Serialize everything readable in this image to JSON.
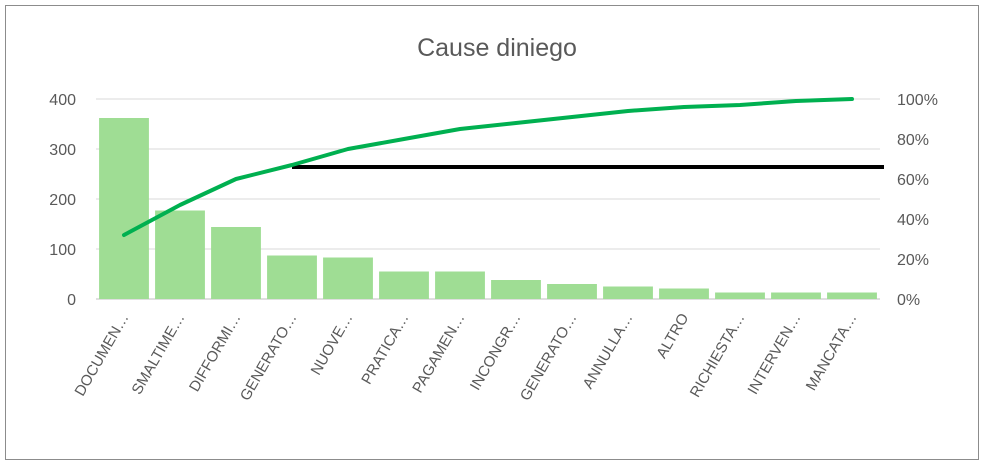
{
  "chart_data": {
    "type": "bar",
    "title": "Cause diniego",
    "categories": [
      "DOCUMEN…",
      "SMALTIME…",
      "DIFFORMI…",
      "GENERATO…",
      "NUOVE…",
      "PRATICA…",
      "PAGAMEN…",
      "INCONGR…",
      "GENERATO…",
      "ANNULLA…",
      "ALTRO",
      "RICHIESTA…",
      "INTERVEN…",
      "MANCATA…"
    ],
    "series": [
      {
        "values": [
          362,
          177,
          144,
          87,
          83,
          55,
          55,
          38,
          30,
          25,
          21,
          13,
          13,
          13
        ],
        "axis": "left",
        "kind": "bar",
        "color": "#9fdd94"
      },
      {
        "values": [
          32,
          47,
          60,
          67,
          75,
          80,
          85,
          88,
          91,
          94,
          96,
          97,
          99,
          100
        ],
        "axis": "right",
        "kind": "line",
        "color": "#00b050"
      }
    ],
    "threshold_line": {
      "value": 66,
      "axis": "right",
      "from_category_index": 3,
      "color": "#000000"
    },
    "ylim": [
      0,
      400
    ],
    "yticks": [
      "0",
      "100",
      "200",
      "300",
      "400"
    ],
    "y2lim": [
      0,
      100
    ],
    "y2ticks": [
      "0%",
      "20%",
      "40%",
      "60%",
      "80%",
      "100%"
    ],
    "grid": true,
    "legend": "none"
  }
}
